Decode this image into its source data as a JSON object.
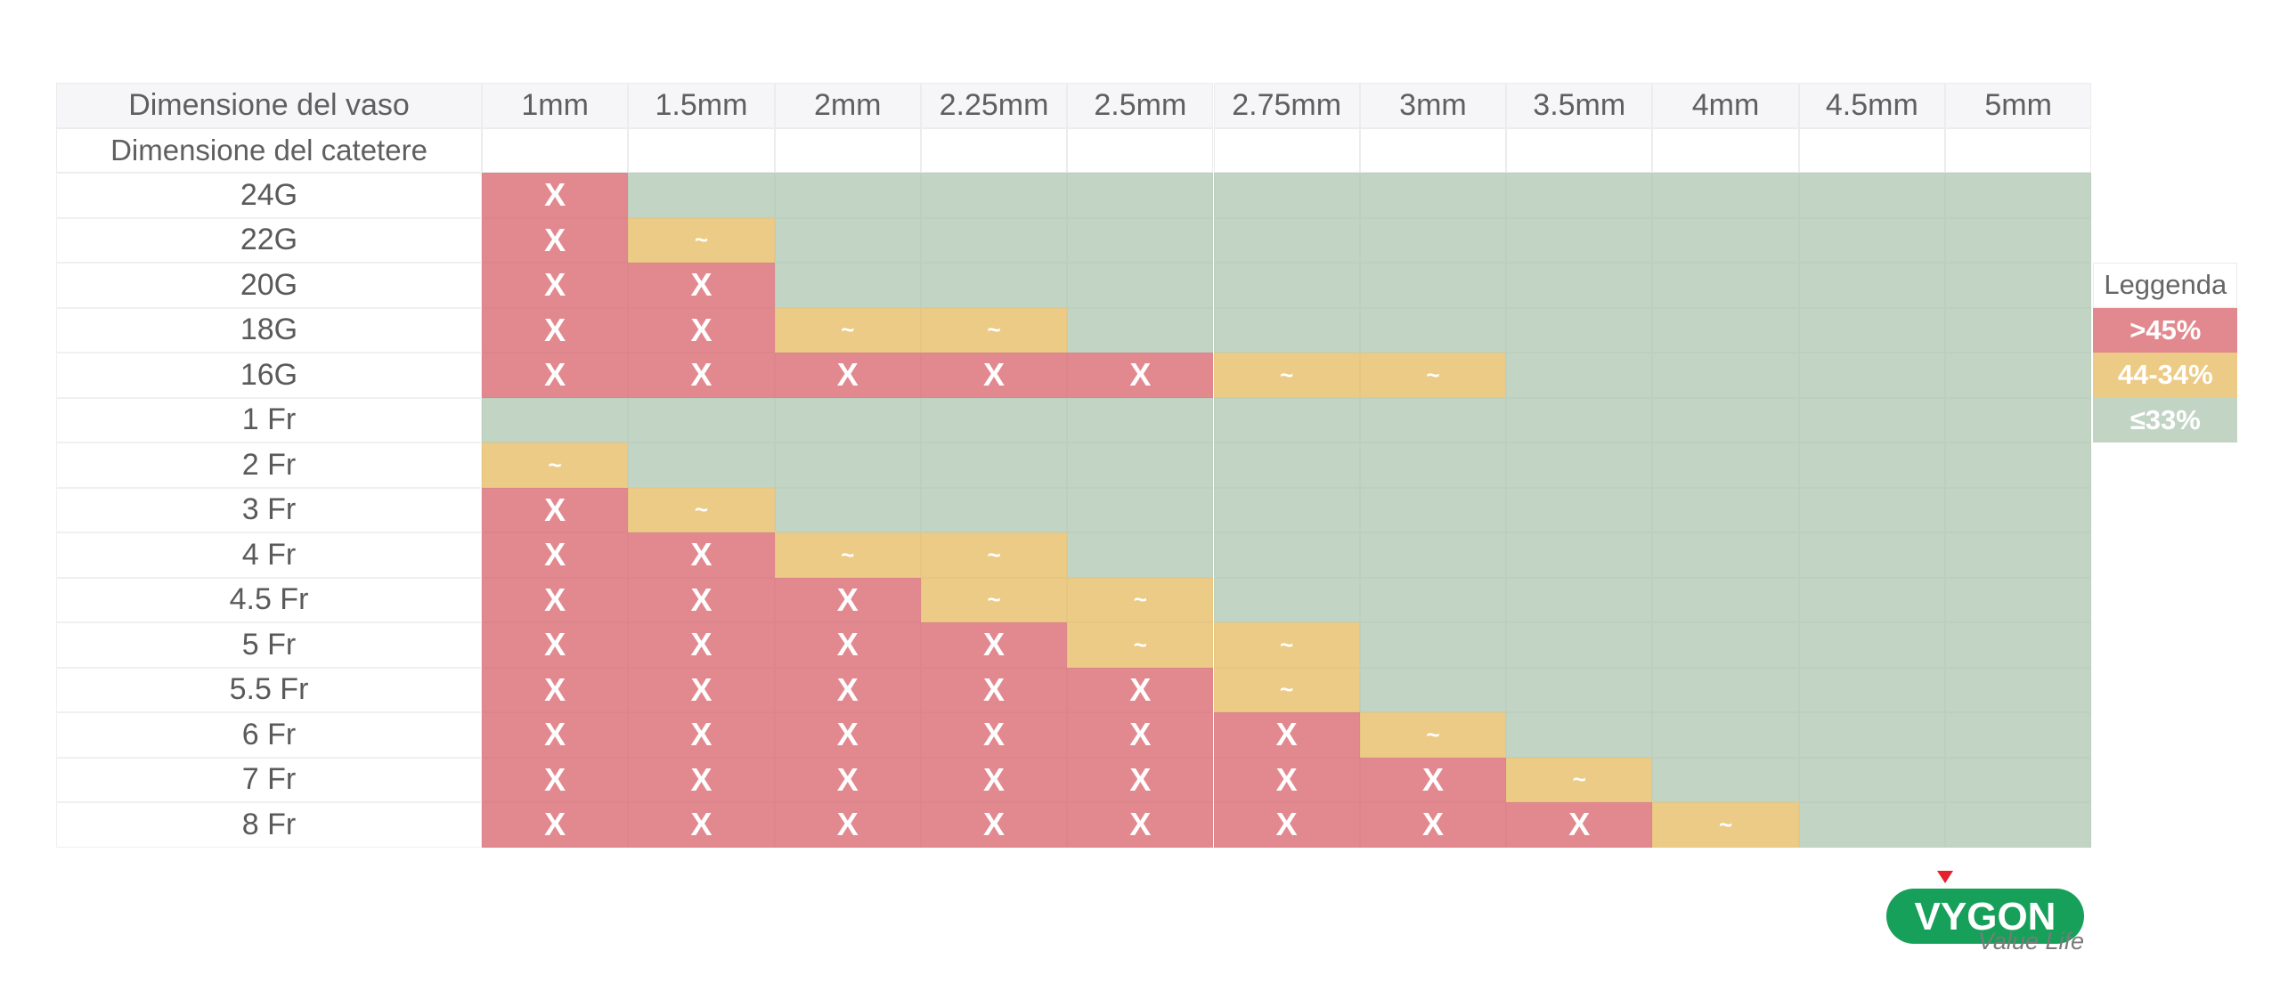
{
  "chart_data": {
    "type": "table",
    "header_label": "Dimensione del vaso",
    "subheader_label": "Dimensione del catetere",
    "columns": [
      "1mm",
      "1.5mm",
      "2mm",
      "2.25mm",
      "2.5mm",
      "2.75mm",
      "3mm",
      "3.5mm",
      "4mm",
      "4.5mm",
      "5mm"
    ],
    "rows": [
      {
        "label": "24G",
        "cells": [
          "r",
          "g",
          "g",
          "g",
          "g",
          "g",
          "g",
          "g",
          "g",
          "g",
          "g"
        ]
      },
      {
        "label": "22G",
        "cells": [
          "r",
          "y",
          "g",
          "g",
          "g",
          "g",
          "g",
          "g",
          "g",
          "g",
          "g"
        ]
      },
      {
        "label": "20G",
        "cells": [
          "r",
          "r",
          "g",
          "g",
          "g",
          "g",
          "g",
          "g",
          "g",
          "g",
          "g"
        ]
      },
      {
        "label": "18G",
        "cells": [
          "r",
          "r",
          "y",
          "y",
          "g",
          "g",
          "g",
          "g",
          "g",
          "g",
          "g"
        ]
      },
      {
        "label": "16G",
        "cells": [
          "r",
          "r",
          "r",
          "r",
          "r",
          "y",
          "y",
          "g",
          "g",
          "g",
          "g"
        ]
      },
      {
        "label": "1 Fr",
        "cells": [
          "g",
          "g",
          "g",
          "g",
          "g",
          "g",
          "g",
          "g",
          "g",
          "g",
          "g"
        ]
      },
      {
        "label": "2 Fr",
        "cells": [
          "y",
          "g",
          "g",
          "g",
          "g",
          "g",
          "g",
          "g",
          "g",
          "g",
          "g"
        ]
      },
      {
        "label": "3 Fr",
        "cells": [
          "r",
          "y",
          "g",
          "g",
          "g",
          "g",
          "g",
          "g",
          "g",
          "g",
          "g"
        ]
      },
      {
        "label": "4 Fr",
        "cells": [
          "r",
          "r",
          "y",
          "y",
          "g",
          "g",
          "g",
          "g",
          "g",
          "g",
          "g"
        ]
      },
      {
        "label": "4.5 Fr",
        "cells": [
          "r",
          "r",
          "r",
          "y",
          "y",
          "g",
          "g",
          "g",
          "g",
          "g",
          "g"
        ]
      },
      {
        "label": "5 Fr",
        "cells": [
          "r",
          "r",
          "r",
          "r",
          "y",
          "y",
          "g",
          "g",
          "g",
          "g",
          "g"
        ]
      },
      {
        "label": "5.5 Fr",
        "cells": [
          "r",
          "r",
          "r",
          "r",
          "r",
          "y",
          "g",
          "g",
          "g",
          "g",
          "g"
        ]
      },
      {
        "label": "6 Fr",
        "cells": [
          "r",
          "r",
          "r",
          "r",
          "r",
          "r",
          "y",
          "g",
          "g",
          "g",
          "g"
        ]
      },
      {
        "label": "7 Fr",
        "cells": [
          "r",
          "r",
          "r",
          "r",
          "r",
          "r",
          "r",
          "y",
          "g",
          "g",
          "g"
        ]
      },
      {
        "label": "8 Fr",
        "cells": [
          "r",
          "r",
          "r",
          "r",
          "r",
          "r",
          "r",
          "r",
          "y",
          "g",
          "g"
        ]
      }
    ],
    "categories": {
      "r": {
        "mark": "X",
        "color": "#e2898f",
        "legend": ">45%"
      },
      "y": {
        "mark": "~",
        "color": "#eccb86",
        "legend": "44-34%"
      },
      "g": {
        "mark": "",
        "color": "#c2d5c5",
        "legend": "≤33%"
      }
    },
    "legend": {
      "title": "Leggenda",
      "order": [
        "r",
        "y",
        "g"
      ],
      "placement": "right"
    }
  },
  "brand": {
    "logo_text": "VYGON",
    "tagline": "Value Life",
    "logo_color": "#17a05a",
    "accent_color": "#e4222e"
  }
}
